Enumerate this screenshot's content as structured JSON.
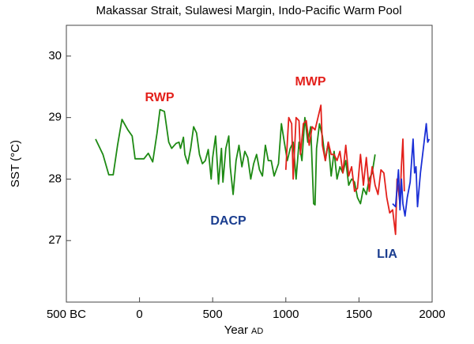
{
  "chart_data": {
    "type": "line",
    "title": "Makassar Strait, Sulawesi Margin, Indo-Pacific Warm Pool",
    "x_label": "Year",
    "x_label_suffix": "AD",
    "y_label": "SST (°C)",
    "xlim": [
      -500,
      2000
    ],
    "xticks": [
      {
        "value": -500,
        "label": "500 BC"
      },
      0,
      500,
      1000,
      1500,
      2000
    ],
    "ylim": [
      26,
      30.5
    ],
    "yticks": [
      27,
      28,
      29,
      30
    ],
    "annotations": [
      "RWP",
      "MWP",
      "DACP",
      "LIA"
    ],
    "series": [
      {
        "color": "#1e8a14",
        "x": [
          -300,
          -250,
          -210,
          -180,
          -150,
          -120,
          -80,
          -50,
          -30,
          0,
          30,
          60,
          90,
          120,
          140,
          170,
          200,
          220,
          250,
          270,
          280,
          300,
          310,
          330,
          350,
          370,
          390,
          410,
          430,
          450,
          470,
          490,
          500,
          520,
          540,
          560,
          570,
          590,
          610,
          620,
          640,
          660,
          680,
          700,
          720,
          740,
          760,
          780,
          800,
          820,
          840,
          860,
          880,
          900,
          920,
          950,
          970,
          990,
          1010,
          1030,
          1050,
          1070,
          1090,
          1110,
          1130,
          1150,
          1170,
          1190,
          1200,
          1210,
          1230,
          1250,
          1270,
          1290,
          1310,
          1330,
          1350,
          1370,
          1390,
          1410,
          1430,
          1450,
          1470,
          1490,
          1510,
          1530,
          1550,
          1570,
          1590,
          1610
        ],
        "values": [
          28.65,
          28.4,
          28.07,
          28.07,
          28.55,
          28.97,
          28.8,
          28.7,
          28.33,
          28.33,
          28.33,
          28.42,
          28.28,
          28.75,
          29.13,
          29.1,
          28.6,
          28.5,
          28.58,
          28.6,
          28.5,
          28.68,
          28.4,
          28.25,
          28.5,
          28.85,
          28.75,
          28.4,
          28.25,
          28.3,
          28.48,
          28.0,
          28.35,
          28.7,
          27.92,
          28.5,
          27.95,
          28.5,
          28.7,
          28.2,
          27.75,
          28.3,
          28.55,
          28.2,
          28.45,
          28.35,
          28.0,
          28.25,
          28.4,
          28.15,
          28.05,
          28.55,
          28.3,
          28.3,
          28.05,
          28.25,
          28.9,
          28.6,
          28.3,
          28.5,
          28.6,
          28.0,
          28.6,
          28.3,
          29.0,
          28.6,
          28.85,
          27.6,
          27.58,
          28.5,
          28.9,
          28.7,
          28.3,
          28.6,
          28.05,
          28.45,
          28.0,
          28.2,
          28.1,
          28.3,
          27.9,
          28.0,
          27.95,
          27.7,
          27.6,
          27.85,
          27.75,
          28.0,
          28.1,
          28.4
        ]
      },
      {
        "color": "#e3201b",
        "x": [
          1000,
          1010,
          1020,
          1040,
          1050,
          1070,
          1090,
          1100,
          1120,
          1140,
          1160,
          1180,
          1200,
          1220,
          1240,
          1250,
          1270,
          1290,
          1310,
          1330,
          1350,
          1370,
          1390,
          1410,
          1430,
          1450,
          1470,
          1490,
          1510,
          1530,
          1550,
          1570,
          1590,
          1610,
          1630,
          1650,
          1670,
          1690,
          1710,
          1730,
          1750,
          1760,
          1780,
          1790,
          1800,
          1810
        ],
        "values": [
          28.15,
          28.6,
          29.0,
          28.9,
          28.0,
          29.0,
          28.95,
          28.4,
          28.9,
          28.95,
          28.55,
          28.85,
          28.8,
          29.0,
          29.2,
          28.55,
          28.3,
          28.6,
          28.4,
          28.4,
          28.3,
          28.45,
          28.1,
          28.55,
          28.05,
          28.2,
          27.8,
          27.85,
          28.4,
          27.9,
          28.35,
          27.8,
          28.2,
          27.9,
          27.75,
          28.15,
          28.1,
          27.7,
          27.45,
          27.5,
          27.1,
          28.0,
          27.6,
          28.2,
          28.65,
          27.8
        ]
      },
      {
        "color": "#1a2fd6",
        "x": [
          1730,
          1750,
          1770,
          1780,
          1790,
          1800,
          1815,
          1830,
          1850,
          1870,
          1880,
          1890,
          1900,
          1920,
          1940,
          1960,
          1970,
          1980
        ],
        "values": [
          27.6,
          27.55,
          28.15,
          27.5,
          28.0,
          27.6,
          27.4,
          27.7,
          27.95,
          28.65,
          28.1,
          28.2,
          27.55,
          28.1,
          28.5,
          28.9,
          28.6,
          28.65
        ]
      }
    ]
  }
}
